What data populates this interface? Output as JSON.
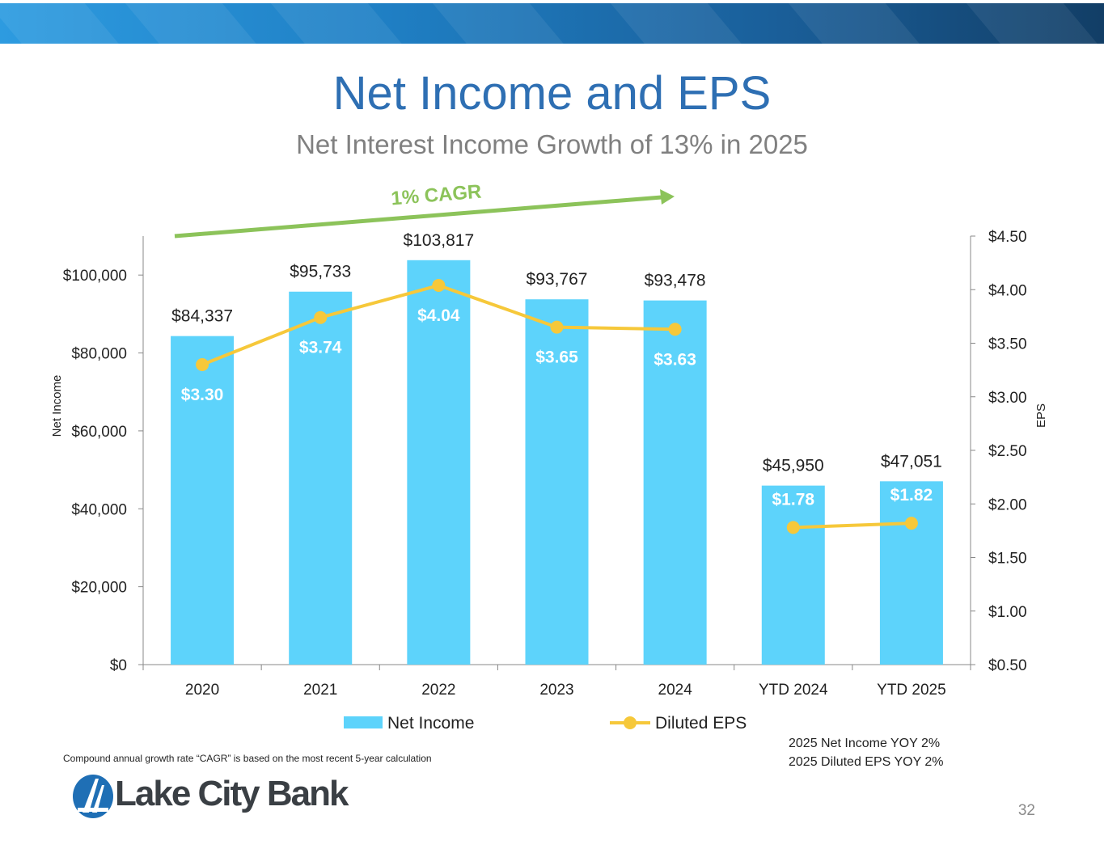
{
  "slide": {
    "title": "Net Income and EPS",
    "subtitle": "Net Interest Income Growth of 13% in 2025",
    "cagr_label": "1% CAGR",
    "footnote": "Compound annual growth rate “CAGR” is based on the most recent 5-year calculation",
    "yoy_net_income": "2025 Net Income YOY  2%",
    "yoy_eps": "2025 Diluted EPS YOY  2%",
    "logo_text": "Lake City Bank",
    "page_number": "32"
  },
  "colors": {
    "bar": "#5dd3fb",
    "line": "#f6c83a",
    "cagr_arrow": "#8cc35a",
    "title": "#2e6fb3",
    "banner": "#1f7fc4"
  },
  "chart_data": {
    "type": "bar",
    "categories": [
      "2020",
      "2021",
      "2022",
      "2023",
      "2024",
      "YTD 2024",
      "YTD 2025"
    ],
    "series": [
      {
        "name": "Net Income",
        "type": "bar",
        "axis": "left",
        "values": [
          84337,
          95733,
          103817,
          93767,
          93478,
          45950,
          47051
        ],
        "labels": [
          "$84,337",
          "$95,733",
          "$103,817",
          "$93,767",
          "$93,478",
          "$45,950",
          "$47,051"
        ]
      },
      {
        "name": "Diluted EPS",
        "type": "line",
        "axis": "right",
        "values": [
          3.3,
          3.74,
          4.04,
          3.65,
          3.63,
          1.78,
          1.82
        ],
        "labels": [
          "$3.30",
          "$3.74",
          "$4.04",
          "$3.65",
          "$3.63",
          "$1.78",
          "$1.82"
        ],
        "connected_segments": [
          [
            0,
            4
          ],
          [
            5,
            6
          ]
        ]
      }
    ],
    "ylabel": "Net Income",
    "y2label": "EPS",
    "ylim": [
      0,
      110000
    ],
    "y2lim": [
      0.5,
      4.5
    ],
    "yticks": [
      "$0",
      "$20,000",
      "$40,000",
      "$60,000",
      "$80,000",
      "$100,000"
    ],
    "y2ticks": [
      "$0.50",
      "$1.00",
      "$1.50",
      "$2.00",
      "$2.50",
      "$3.00",
      "$3.50",
      "$4.00",
      "$4.50"
    ],
    "legend_position": "bottom",
    "grid": false
  }
}
